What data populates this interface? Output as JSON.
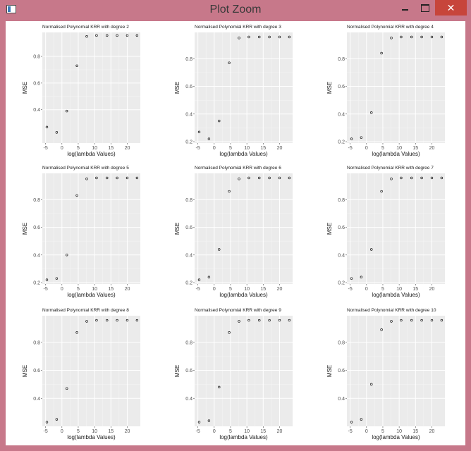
{
  "window": {
    "title": "Plot Zoom",
    "icons": {
      "app": "app-window-icon",
      "minimize": "minimize-icon",
      "maximize": "maximize-icon",
      "close": "close-icon"
    },
    "close_color": "#c7453b",
    "frame_color": "#c7788a"
  },
  "chart_data": [
    {
      "type": "scatter",
      "title": "Normalised Polynomial KRR with degree 2",
      "xlabel": "log(lambda Values)",
      "ylabel": "MSE",
      "xlim": [
        -6,
        24
      ],
      "ylim": [
        0.15,
        0.98
      ],
      "xticks": [
        -5,
        0,
        5,
        10,
        15,
        20
      ],
      "yticks": [
        0.4,
        0.6,
        0.8
      ],
      "x": [
        -4.6,
        -1.6,
        1.5,
        4.6,
        7.6,
        10.6,
        13.8,
        16.9,
        20.0,
        23.0
      ],
      "y": [
        0.27,
        0.23,
        0.39,
        0.73,
        0.95,
        0.957,
        0.957,
        0.957,
        0.957,
        0.957
      ],
      "grid": true,
      "panel_bg": "#ebebeb"
    },
    {
      "type": "scatter",
      "title": "Normalised Polynomial KRR with degree 3",
      "xlabel": "log(lambda Values)",
      "ylabel": "MSE",
      "xlim": [
        -6,
        24
      ],
      "ylim": [
        0.19,
        0.99
      ],
      "xticks": [
        -5,
        0,
        5,
        10,
        15,
        20
      ],
      "yticks": [
        0.2,
        0.4,
        0.6,
        0.8
      ],
      "x": [
        -4.6,
        -1.6,
        1.5,
        4.6,
        7.6,
        10.6,
        13.8,
        16.9,
        20.0,
        23.0
      ],
      "y": [
        0.27,
        0.22,
        0.35,
        0.77,
        0.95,
        0.957,
        0.957,
        0.957,
        0.957,
        0.957
      ],
      "grid": true,
      "panel_bg": "#ebebeb"
    },
    {
      "type": "scatter",
      "title": "Normalised Polynomial KRR with degree 4",
      "xlabel": "log(lambda Values)",
      "ylabel": "MSE",
      "xlim": [
        -6,
        24
      ],
      "ylim": [
        0.19,
        0.99
      ],
      "xticks": [
        -5,
        0,
        5,
        10,
        15,
        20
      ],
      "yticks": [
        0.2,
        0.4,
        0.6,
        0.8
      ],
      "x": [
        -4.6,
        -1.6,
        1.5,
        4.6,
        7.6,
        10.6,
        13.8,
        16.9,
        20.0,
        23.0
      ],
      "y": [
        0.22,
        0.23,
        0.41,
        0.84,
        0.95,
        0.957,
        0.957,
        0.957,
        0.957,
        0.957
      ],
      "grid": true,
      "panel_bg": "#ebebeb"
    },
    {
      "type": "scatter",
      "title": "Normalised Polynomial KRR with degree 5",
      "xlabel": "log(lambda Values)",
      "ylabel": "MSE",
      "xlim": [
        -6,
        24
      ],
      "ylim": [
        0.19,
        0.99
      ],
      "xticks": [
        -5,
        0,
        5,
        10,
        15,
        20
      ],
      "yticks": [
        0.2,
        0.4,
        0.6,
        0.8
      ],
      "x": [
        -4.6,
        -1.6,
        1.5,
        4.6,
        7.6,
        10.6,
        13.8,
        16.9,
        20.0,
        23.0
      ],
      "y": [
        0.22,
        0.23,
        0.4,
        0.83,
        0.95,
        0.957,
        0.957,
        0.957,
        0.957,
        0.957
      ],
      "grid": true,
      "panel_bg": "#ebebeb"
    },
    {
      "type": "scatter",
      "title": "Normalised Polynomial KRR with degree 6",
      "xlabel": "log(lambda Values)",
      "ylabel": "MSE",
      "xlim": [
        -6,
        24
      ],
      "ylim": [
        0.19,
        0.99
      ],
      "xticks": [
        -5,
        0,
        5,
        10,
        15,
        20
      ],
      "yticks": [
        0.2,
        0.4,
        0.6,
        0.8
      ],
      "x": [
        -4.6,
        -1.6,
        1.5,
        4.6,
        7.6,
        10.6,
        13.8,
        16.9,
        20.0,
        23.0
      ],
      "y": [
        0.22,
        0.24,
        0.44,
        0.86,
        0.95,
        0.957,
        0.957,
        0.957,
        0.957,
        0.957
      ],
      "grid": true,
      "panel_bg": "#ebebeb"
    },
    {
      "type": "scatter",
      "title": "Normalised Polynomial KRR with degree 7",
      "xlabel": "log(lambda Values)",
      "ylabel": "MSE",
      "xlim": [
        -6,
        24
      ],
      "ylim": [
        0.19,
        0.99
      ],
      "xticks": [
        -5,
        0,
        5,
        10,
        15,
        20
      ],
      "yticks": [
        0.2,
        0.4,
        0.6,
        0.8
      ],
      "x": [
        -4.6,
        -1.6,
        1.5,
        4.6,
        7.6,
        10.6,
        13.8,
        16.9,
        20.0,
        23.0
      ],
      "y": [
        0.23,
        0.24,
        0.44,
        0.86,
        0.95,
        0.957,
        0.957,
        0.957,
        0.957,
        0.957
      ],
      "grid": true,
      "panel_bg": "#ebebeb"
    },
    {
      "type": "scatter",
      "title": "Normalised Polynomial KRR with degree 8",
      "xlabel": "log(lambda Values)",
      "ylabel": "MSE",
      "xlim": [
        -6,
        24
      ],
      "ylim": [
        0.2,
        0.99
      ],
      "xticks": [
        -5,
        0,
        5,
        10,
        15,
        20
      ],
      "yticks": [
        0.4,
        0.6,
        0.8
      ],
      "x": [
        -4.6,
        -1.6,
        1.5,
        4.6,
        7.6,
        10.6,
        13.8,
        16.9,
        20.0,
        23.0
      ],
      "y": [
        0.23,
        0.25,
        0.47,
        0.87,
        0.95,
        0.957,
        0.957,
        0.957,
        0.957,
        0.957
      ],
      "grid": true,
      "panel_bg": "#ebebeb"
    },
    {
      "type": "scatter",
      "title": "Normalised Polynomial KRR with degree 9",
      "xlabel": "log(lambda Values)",
      "ylabel": "MSE",
      "xlim": [
        -6,
        24
      ],
      "ylim": [
        0.2,
        0.99
      ],
      "xticks": [
        -5,
        0,
        5,
        10,
        15,
        20
      ],
      "yticks": [
        0.4,
        0.6,
        0.8
      ],
      "x": [
        -4.6,
        -1.6,
        1.5,
        4.6,
        7.6,
        10.6,
        13.8,
        16.9,
        20.0,
        23.0
      ],
      "y": [
        0.23,
        0.24,
        0.48,
        0.87,
        0.95,
        0.957,
        0.957,
        0.957,
        0.957,
        0.957
      ],
      "grid": true,
      "panel_bg": "#ebebeb"
    },
    {
      "type": "scatter",
      "title": "Normalised Polynomial KRR with degree 10",
      "xlabel": "log(lambda Values)",
      "ylabel": "MSE",
      "xlim": [
        -6,
        24
      ],
      "ylim": [
        0.2,
        0.99
      ],
      "xticks": [
        -5,
        0,
        5,
        10,
        15,
        20
      ],
      "yticks": [
        0.4,
        0.6,
        0.8
      ],
      "x": [
        -4.6,
        -1.6,
        1.5,
        4.6,
        7.6,
        10.6,
        13.8,
        16.9,
        20.0,
        23.0
      ],
      "y": [
        0.23,
        0.25,
        0.5,
        0.89,
        0.95,
        0.957,
        0.957,
        0.957,
        0.957,
        0.957
      ],
      "grid": true,
      "panel_bg": "#ebebeb"
    }
  ]
}
